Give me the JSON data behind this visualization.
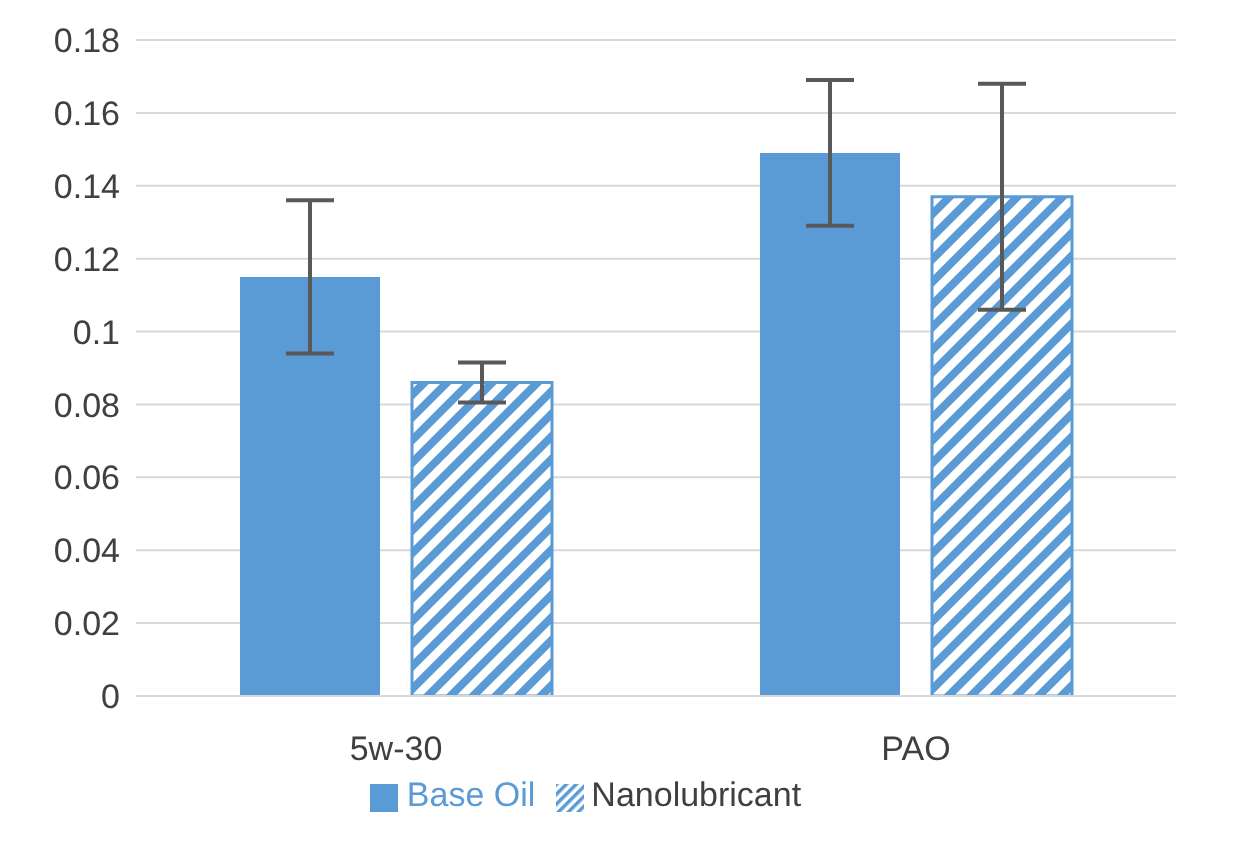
{
  "chart_data": {
    "type": "bar",
    "categories": [
      "5w-30",
      "PAO"
    ],
    "series": [
      {
        "name": "Base Oil",
        "color": "#5b9bd5",
        "values": [
          0.115,
          0.149
        ],
        "errors": [
          0.021,
          0.02
        ]
      },
      {
        "name": "Nanolubricant",
        "color": "#5b9bd5",
        "values": [
          0.086,
          0.137
        ],
        "errors": [
          0.0055,
          0.031
        ]
      }
    ],
    "ylim": [
      0,
      0.18
    ],
    "yticks": [
      0,
      0.02,
      0.04,
      0.06,
      0.08,
      0.1,
      0.12,
      0.14,
      0.16,
      0.18
    ],
    "grid": "y",
    "legend": "bottom"
  }
}
